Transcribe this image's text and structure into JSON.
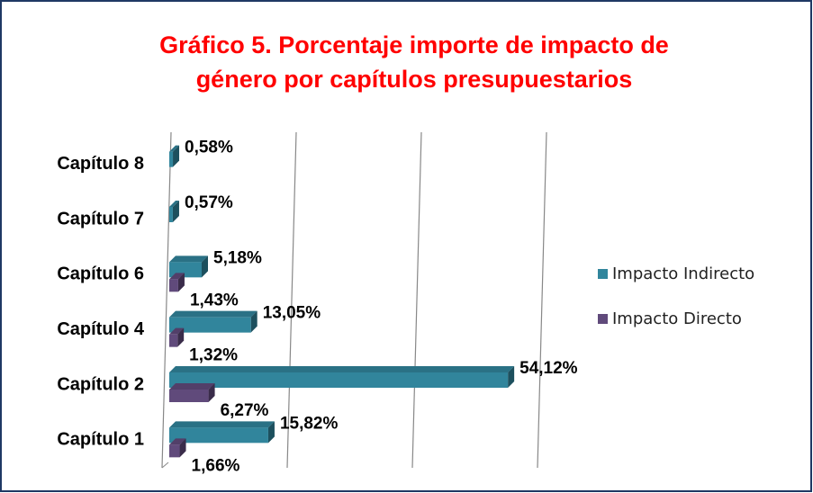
{
  "chart_data": {
    "type": "bar3d_horizontal",
    "title": [
      "Gráfico 5. Porcentaje importe de impacto de",
      "género por capítulos presupuestarios"
    ],
    "categories": [
      "Capítulo 8",
      "Capítulo 7",
      "Capítulo 6",
      "Capítulo 4",
      "Capítulo 2",
      "Capítulo 1"
    ],
    "series": [
      {
        "name": "Impacto Indirecto",
        "color": "#31859c",
        "values": [
          0.58,
          0.57,
          5.18,
          13.05,
          54.12,
          15.82
        ],
        "value_labels": [
          "0,58%",
          "0,57%",
          "5,18%",
          "13,05%",
          "54,12%",
          "15,82%"
        ]
      },
      {
        "name": "Impacto Directo",
        "color": "#604a7b",
        "values": [
          null,
          null,
          1.43,
          1.32,
          6.27,
          1.66
        ],
        "value_labels": [
          null,
          null,
          "1,43%",
          "1,32%",
          "6,27%",
          "1,66%"
        ]
      }
    ],
    "xlim": [
      0,
      60
    ],
    "xticks": [
      0,
      20,
      40,
      60
    ],
    "grid": true,
    "legend": "right"
  }
}
